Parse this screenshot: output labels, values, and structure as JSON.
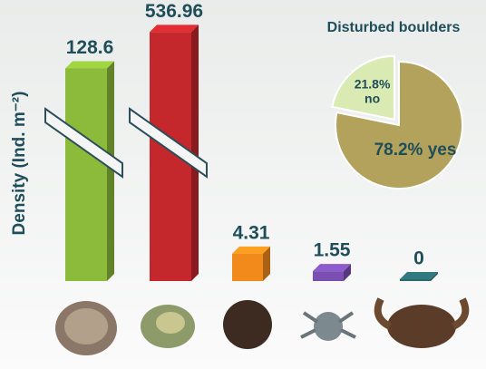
{
  "chart_data": [
    {
      "type": "bar",
      "ylabel": "Density (Ind. m⁻²)",
      "values": [
        128.6,
        536.96,
        4.31,
        1.55,
        0
      ],
      "colors": [
        "#8cba3a",
        "#c4272c",
        "#f28a1b",
        "#7a4fb2",
        "#2b6a6f"
      ],
      "broken_axis": true
    },
    {
      "type": "pie",
      "title": "Disturbed boulders",
      "categories": [
        "no",
        "yes"
      ],
      "values": [
        21.8,
        78.2
      ],
      "value_labels": [
        "21.8%",
        "78.2%"
      ],
      "colors": [
        "#d9eab3",
        "#b3a25c"
      ]
    }
  ]
}
